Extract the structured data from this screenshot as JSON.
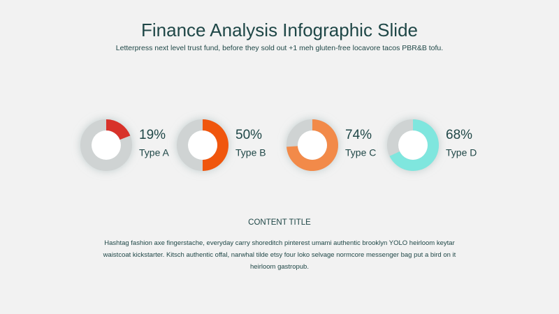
{
  "header": {
    "title": "Finance Analysis Infographic Slide",
    "subtitle": "Letterpress next level trust fund, before they sold out +1 meh gluten-free locavore tacos PBR&B tofu."
  },
  "chart_data": [
    {
      "type": "donut",
      "categories": [
        "Type A"
      ],
      "values": [
        19
      ],
      "value_labels": [
        "19%"
      ],
      "color": "#d8322c"
    },
    {
      "type": "donut",
      "categories": [
        "Type B"
      ],
      "values": [
        50
      ],
      "value_labels": [
        "50%"
      ],
      "color": "#f0560f"
    },
    {
      "type": "donut",
      "categories": [
        "Type C"
      ],
      "values": [
        74
      ],
      "value_labels": [
        "74%"
      ],
      "color": "#f28a49"
    },
    {
      "type": "donut",
      "categories": [
        "Type D"
      ],
      "values": [
        68
      ],
      "value_labels": [
        "68%"
      ],
      "color": "#7fe6de"
    }
  ],
  "content": {
    "title": "CONTENT TITLE",
    "text": "Hashtag fashion axe fingerstache, everyday carry shoreditch pinterest umami authentic brooklyn YOLO heirloom keytar waistcoat kickstarter. Kitsch authentic offal, narwhal tilde etsy four loko selvage normcore messenger bag put a bird on it heirloom gastropub."
  }
}
